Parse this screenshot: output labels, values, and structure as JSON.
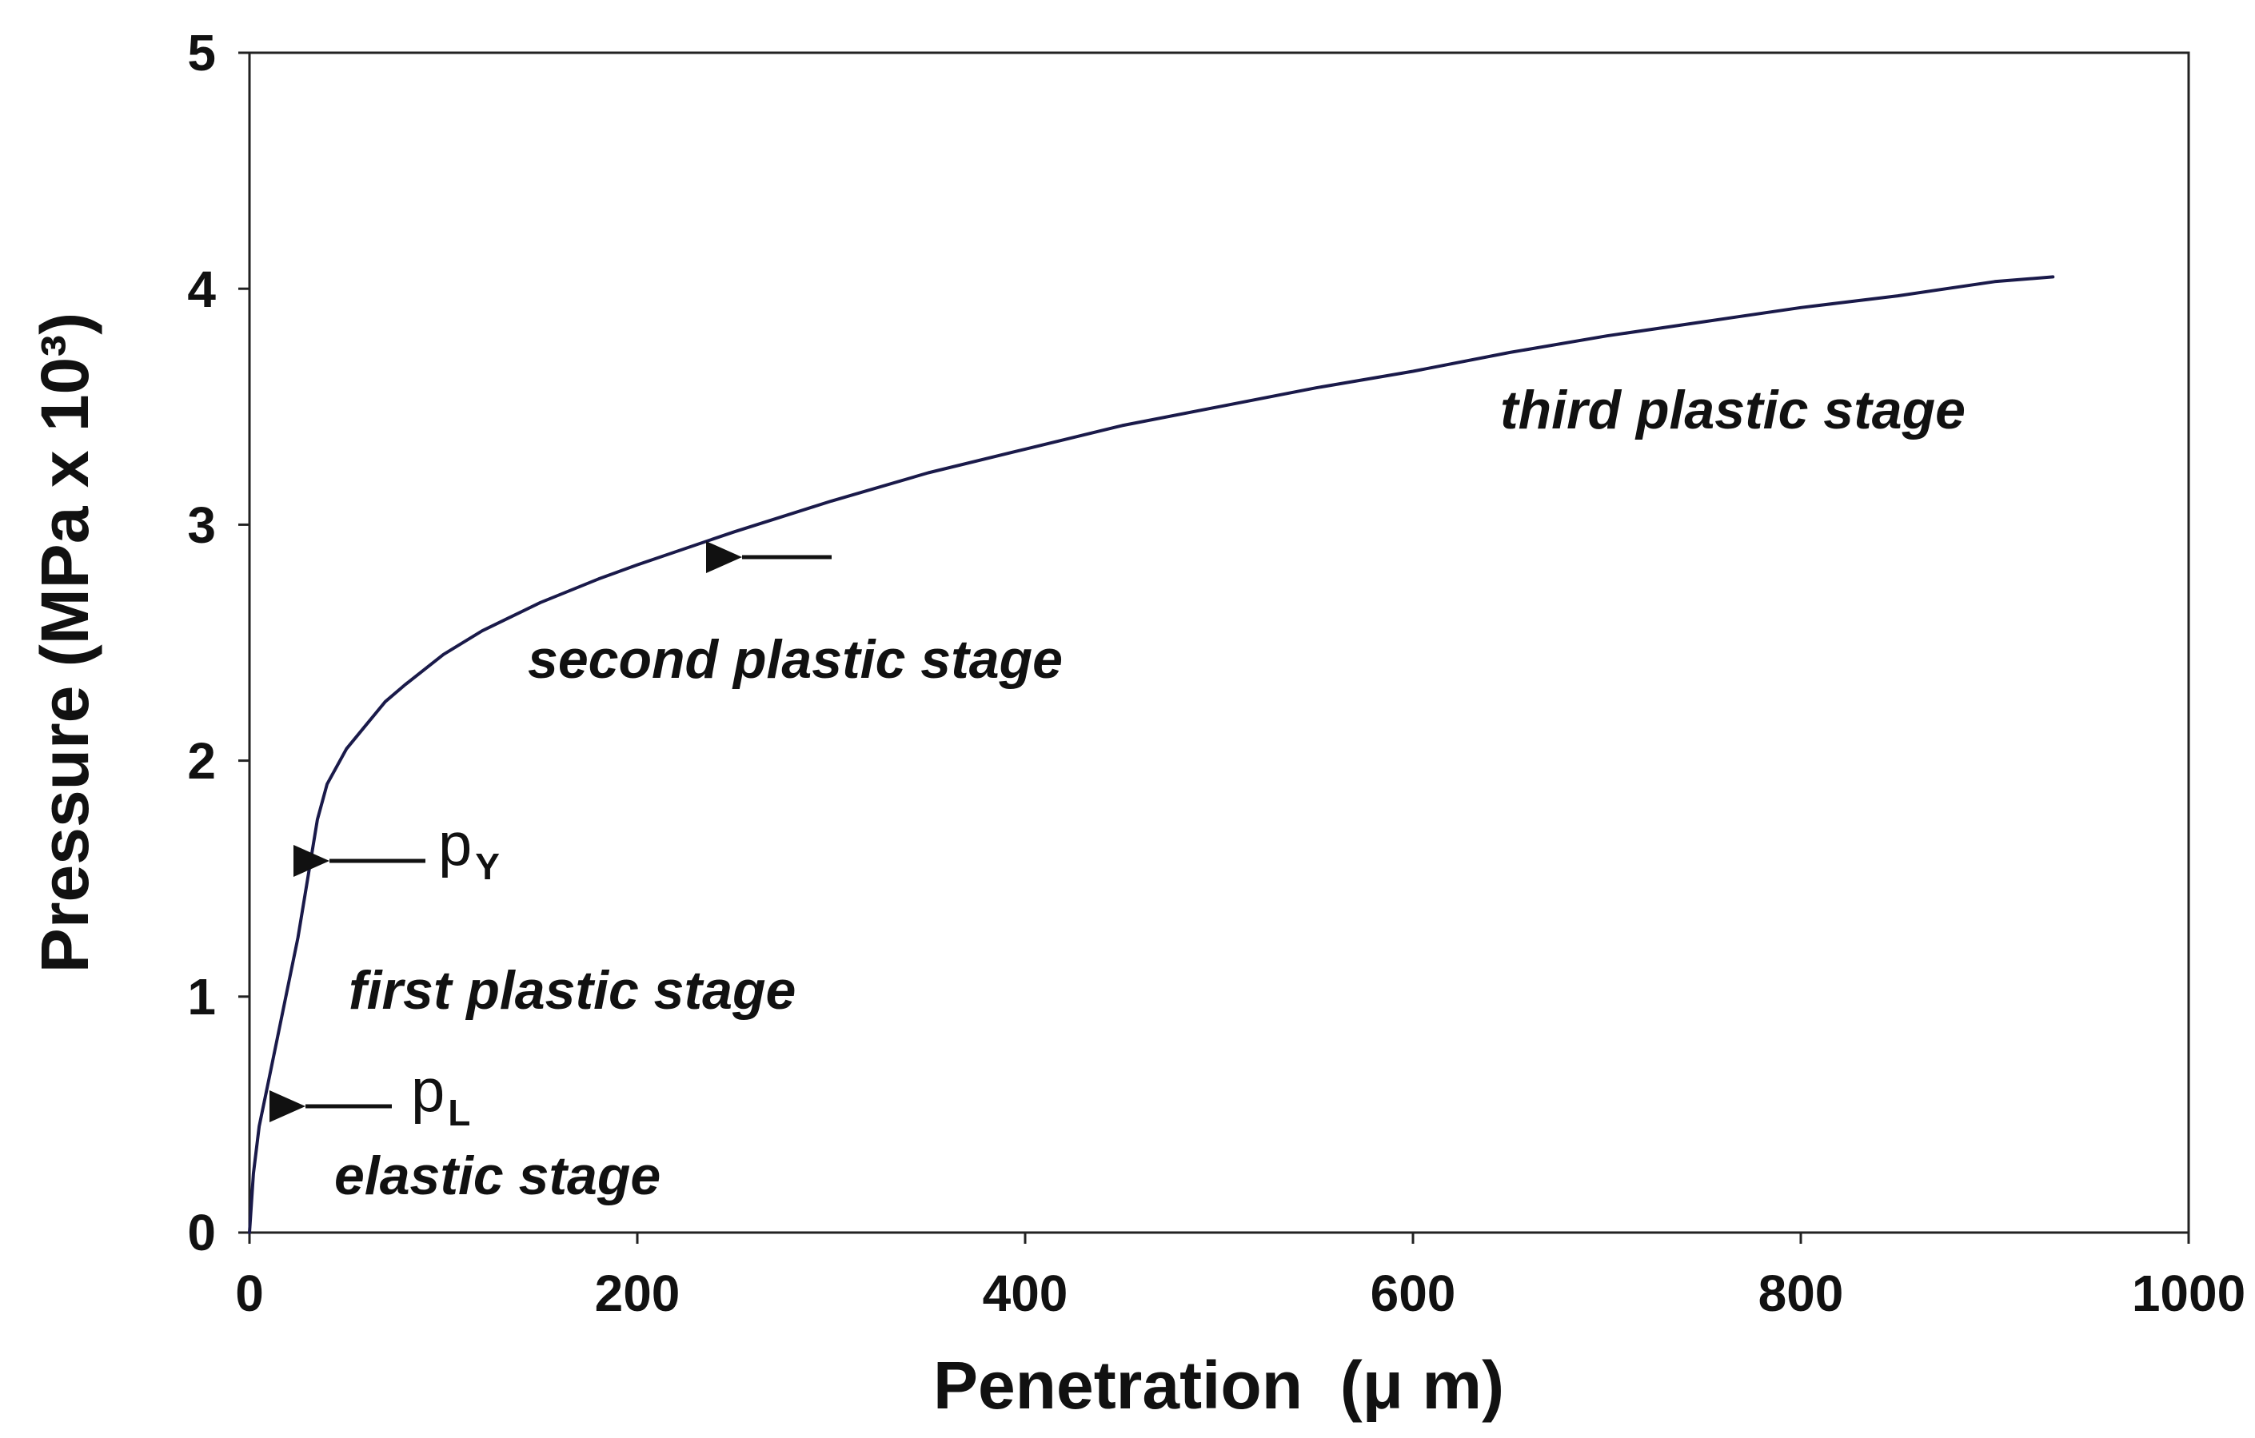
{
  "chart_data": {
    "type": "line",
    "xlabel": "Penetration  (μ m)",
    "ylabel": "Pressure (MPa x 10³)",
    "xlim": [
      0,
      1000
    ],
    "ylim": [
      0,
      5
    ],
    "xticks": [
      "0",
      "200",
      "400",
      "600",
      "800",
      "1000"
    ],
    "yticks": [
      "0",
      "1",
      "2",
      "3",
      "4",
      "5"
    ],
    "grid": false,
    "line_color": "#1a1a4a",
    "series": [
      {
        "x": [
          0,
          2,
          5,
          10,
          15,
          20,
          25,
          30,
          35,
          40,
          50,
          60,
          70,
          80,
          100,
          120,
          150,
          180,
          200,
          250,
          300,
          350,
          400,
          450,
          500,
          550,
          600,
          650,
          700,
          750,
          800,
          850,
          900,
          930
        ],
        "y": [
          0,
          0.25,
          0.45,
          0.65,
          0.85,
          1.05,
          1.25,
          1.5,
          1.75,
          1.9,
          2.05,
          2.15,
          2.25,
          2.32,
          2.45,
          2.55,
          2.67,
          2.77,
          2.83,
          2.97,
          3.1,
          3.22,
          3.32,
          3.42,
          3.5,
          3.58,
          3.65,
          3.73,
          3.8,
          3.86,
          3.92,
          3.97,
          4.03,
          4.05
        ]
      }
    ],
    "annotations": {
      "stages": {
        "elastic": "elastic stage",
        "first": "first plastic stage",
        "second": "second plastic stage",
        "third": "third plastic stage"
      },
      "p_L": {
        "main": "p",
        "sub": "L"
      },
      "p_Y": {
        "main": "p",
        "sub": "Y"
      }
    }
  }
}
